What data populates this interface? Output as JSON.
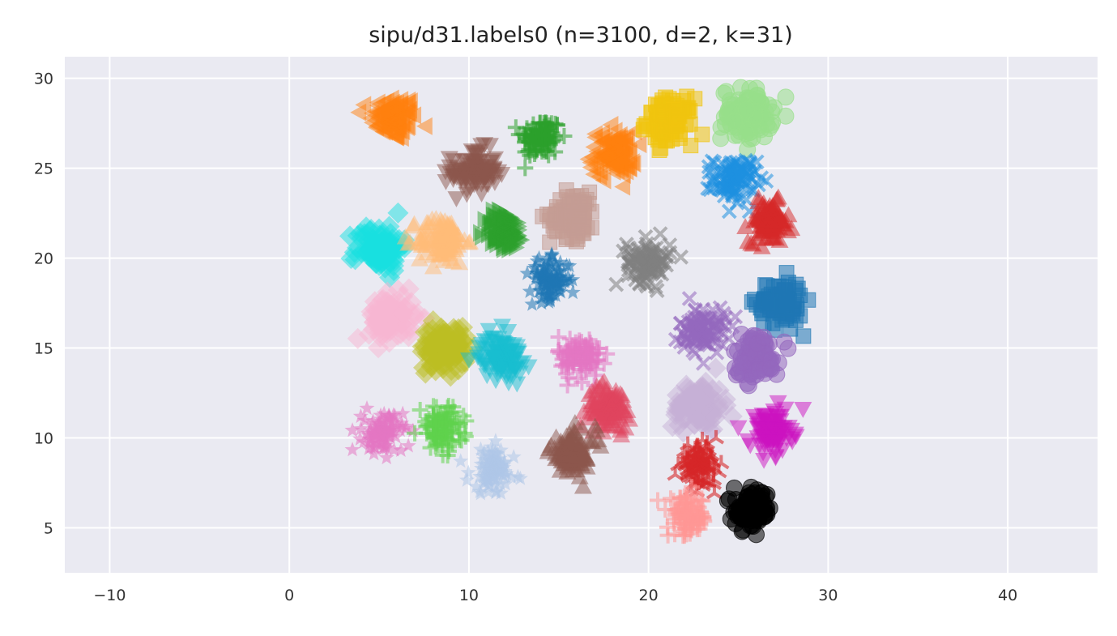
{
  "chart_data": {
    "type": "scatter",
    "title": "sipu/d31.labels0 (n=3100, d=2, k=31)",
    "xlabel": "",
    "ylabel": "",
    "xlim": [
      -12.5,
      45
    ],
    "ylim": [
      2.5,
      31.2
    ],
    "xticks": [
      -10,
      0,
      10,
      20,
      30,
      40
    ],
    "yticks": [
      5,
      10,
      15,
      20,
      25,
      30
    ],
    "x_tick_labels": [
      "−10",
      "0",
      "10",
      "20",
      "30",
      "40"
    ],
    "y_tick_labels": [
      "5",
      "10",
      "15",
      "20",
      "25",
      "30"
    ],
    "grid": true,
    "legend": "none",
    "background_color": "#eaeaf2",
    "grid_color": "#ffffff",
    "clusters": [
      {
        "cx": 5.8,
        "cy": 27.8,
        "spread": 0.85,
        "color": "#ff7f0e",
        "marker": "triangle-left"
      },
      {
        "cx": 14.0,
        "cy": 26.7,
        "spread": 0.75,
        "color": "#2ca02c",
        "marker": "plus"
      },
      {
        "cx": 10.3,
        "cy": 24.8,
        "spread": 0.85,
        "color": "#8c564b",
        "marker": "triangle-down"
      },
      {
        "cx": 18.0,
        "cy": 25.8,
        "spread": 0.85,
        "color": "#ff7f0e",
        "marker": "triangle-left"
      },
      {
        "cx": 21.2,
        "cy": 27.6,
        "spread": 0.85,
        "color": "#f1c40f",
        "marker": "square"
      },
      {
        "cx": 25.5,
        "cy": 28.0,
        "spread": 0.95,
        "color": "#98df8a",
        "marker": "circle"
      },
      {
        "cx": 24.8,
        "cy": 24.4,
        "spread": 0.8,
        "color": "#1e90e0",
        "marker": "x"
      },
      {
        "cx": 26.7,
        "cy": 22.0,
        "spread": 0.75,
        "color": "#d62728",
        "marker": "triangle-up"
      },
      {
        "cx": 5.0,
        "cy": 20.6,
        "spread": 0.85,
        "color": "#17e0e0",
        "marker": "diamond"
      },
      {
        "cx": 8.5,
        "cy": 21.0,
        "spread": 0.9,
        "color": "#ffbb78",
        "marker": "triangle-up"
      },
      {
        "cx": 12.0,
        "cy": 21.5,
        "spread": 0.75,
        "color": "#2ca02c",
        "marker": "triangle-right"
      },
      {
        "cx": 15.8,
        "cy": 22.4,
        "spread": 0.85,
        "color": "#c49c94",
        "marker": "square"
      },
      {
        "cx": 20.0,
        "cy": 19.8,
        "spread": 0.8,
        "color": "#7f7f7f",
        "marker": "x"
      },
      {
        "cx": 14.5,
        "cy": 18.8,
        "spread": 0.75,
        "color": "#1f77b4",
        "marker": "star"
      },
      {
        "cx": 27.3,
        "cy": 17.5,
        "spread": 0.85,
        "color": "#1f77b4",
        "marker": "square"
      },
      {
        "cx": 5.7,
        "cy": 16.7,
        "spread": 0.85,
        "color": "#f7b6d2",
        "marker": "diamond"
      },
      {
        "cx": 8.6,
        "cy": 15.0,
        "spread": 0.85,
        "color": "#bcbd22",
        "marker": "diamond"
      },
      {
        "cx": 11.8,
        "cy": 14.5,
        "spread": 0.8,
        "color": "#17becf",
        "marker": "triangle-down"
      },
      {
        "cx": 16.2,
        "cy": 14.5,
        "spread": 0.8,
        "color": "#e377c2",
        "marker": "plus"
      },
      {
        "cx": 23.0,
        "cy": 16.0,
        "spread": 0.85,
        "color": "#9467bd",
        "marker": "x"
      },
      {
        "cx": 26.0,
        "cy": 14.6,
        "spread": 0.85,
        "color": "#9467bd",
        "marker": "circle"
      },
      {
        "cx": 17.8,
        "cy": 11.7,
        "spread": 0.8,
        "color": "#e0435d",
        "marker": "triangle-up"
      },
      {
        "cx": 22.8,
        "cy": 11.8,
        "spread": 0.95,
        "color": "#c5b0d5",
        "marker": "diamond"
      },
      {
        "cx": 26.8,
        "cy": 10.3,
        "spread": 0.8,
        "color": "#cc11c0",
        "marker": "triangle-down"
      },
      {
        "cx": 5.2,
        "cy": 10.3,
        "spread": 0.75,
        "color": "#e377c2",
        "marker": "star"
      },
      {
        "cx": 8.5,
        "cy": 10.5,
        "spread": 0.8,
        "color": "#5ed14c",
        "marker": "plus"
      },
      {
        "cx": 11.3,
        "cy": 8.2,
        "spread": 0.85,
        "color": "#aec7e8",
        "marker": "star"
      },
      {
        "cx": 15.8,
        "cy": 9.2,
        "spread": 0.85,
        "color": "#8c564b",
        "marker": "triangle-up"
      },
      {
        "cx": 22.8,
        "cy": 8.5,
        "spread": 0.7,
        "color": "#d62728",
        "marker": "tri"
      },
      {
        "cx": 22.2,
        "cy": 5.6,
        "spread": 0.75,
        "color": "#ff9896",
        "marker": "plus"
      },
      {
        "cx": 25.8,
        "cy": 6.0,
        "spread": 0.7,
        "color": "#000000",
        "marker": "circle"
      }
    ]
  }
}
